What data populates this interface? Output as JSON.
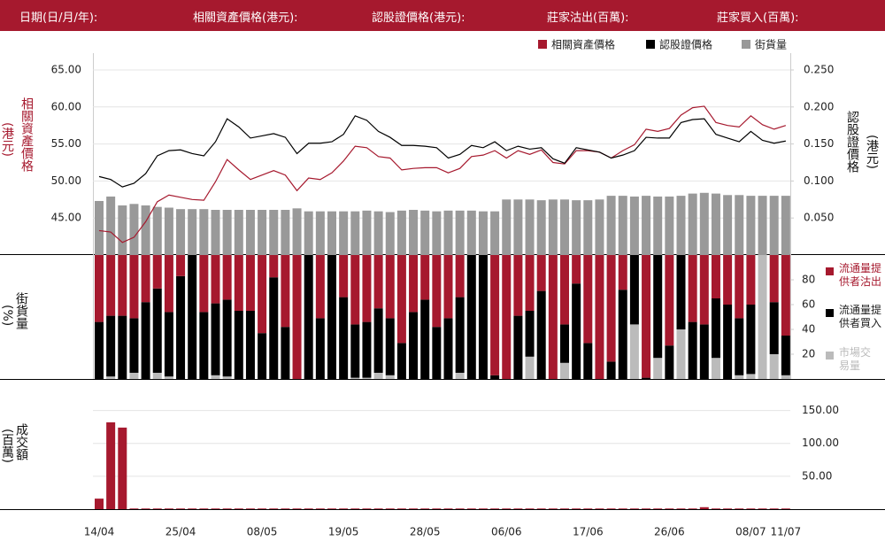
{
  "header": {
    "fields": [
      "日期(日/月/年):",
      "相關資產價格(港元):",
      "認股證價格(港元):",
      "莊家沽出(百萬):",
      "莊家買入(百萬):"
    ]
  },
  "chart_data": [
    {
      "type": "line",
      "ylabel": "相關資產價格",
      "ylabel_unit": "(港元)",
      "y2label": "認股證價格",
      "y2label_unit": "(港元)",
      "ylim": [
        40,
        65
      ],
      "yticks": [
        {
          "value": 45,
          "label": "45.00"
        },
        {
          "value": 50,
          "label": "50.00"
        },
        {
          "value": 55,
          "label": "55.00"
        },
        {
          "value": 60,
          "label": "60.00"
        },
        {
          "value": 65,
          "label": "65.00"
        }
      ],
      "y2lim": [
        0,
        0.25
      ],
      "y2ticks": [
        {
          "value": 0.05,
          "label": "0.050"
        },
        {
          "value": 0.1,
          "label": "0.100"
        },
        {
          "value": 0.15,
          "label": "0.150"
        },
        {
          "value": 0.2,
          "label": "0.200"
        },
        {
          "value": 0.25,
          "label": "0.250"
        }
      ],
      "grid": true,
      "series": [
        {
          "name": "相關資產價格",
          "color": "#a6192e",
          "values": [
            43.3,
            43.1,
            41.7,
            42.4,
            44.5,
            47.2,
            48.1,
            47.8,
            47.5,
            47.4,
            49.9,
            52.9,
            51.5,
            50.2,
            50.8,
            51.4,
            50.8,
            48.7,
            50.4,
            50.2,
            51.1,
            52.7,
            54.7,
            54.5,
            53.3,
            53.1,
            51.5,
            51.7,
            51.8,
            51.8,
            51.1,
            51.7,
            53.3,
            53.5,
            54.1,
            53.1,
            54.1,
            53.6,
            54.2,
            52.5,
            52.3,
            54.1,
            54.1,
            53.9,
            53.1,
            54.1,
            54.9,
            57.0,
            56.7,
            57.1,
            58.9,
            59.9,
            60.1,
            57.9,
            57.5,
            57.3,
            58.8,
            57.6,
            57.0,
            57.5
          ]
        },
        {
          "name": "認股證價格",
          "color": "#000000",
          "axis": "y2",
          "values": [
            0.106,
            0.102,
            0.092,
            0.097,
            0.11,
            0.134,
            0.141,
            0.142,
            0.137,
            0.134,
            0.153,
            0.184,
            0.173,
            0.158,
            0.161,
            0.164,
            0.159,
            0.137,
            0.151,
            0.151,
            0.153,
            0.163,
            0.188,
            0.182,
            0.167,
            0.159,
            0.148,
            0.148,
            0.147,
            0.145,
            0.131,
            0.136,
            0.148,
            0.145,
            0.153,
            0.141,
            0.147,
            0.143,
            0.145,
            0.13,
            0.124,
            0.145,
            0.142,
            0.139,
            0.131,
            0.135,
            0.141,
            0.159,
            0.158,
            0.158,
            0.179,
            0.183,
            0.184,
            0.163,
            0.158,
            0.153,
            0.167,
            0.155,
            0.151,
            0.154
          ]
        },
        {
          "name": "街貨量",
          "color": "#999999",
          "axis": "y2",
          "type": "bar",
          "values": [
            0.073,
            0.079,
            0.067,
            0.069,
            0.067,
            0.065,
            0.064,
            0.062,
            0.062,
            0.062,
            0.061,
            0.061,
            0.061,
            0.061,
            0.061,
            0.061,
            0.061,
            0.063,
            0.059,
            0.059,
            0.059,
            0.059,
            0.059,
            0.06,
            0.059,
            0.058,
            0.06,
            0.061,
            0.06,
            0.059,
            0.06,
            0.06,
            0.06,
            0.059,
            0.059,
            0.075,
            0.075,
            0.075,
            0.074,
            0.075,
            0.075,
            0.074,
            0.074,
            0.075,
            0.08,
            0.08,
            0.079,
            0.08,
            0.079,
            0.079,
            0.08,
            0.083,
            0.084,
            0.083,
            0.081,
            0.081,
            0.08,
            0.08,
            0.08,
            0.08
          ]
        }
      ]
    },
    {
      "type": "stacked_bar",
      "ylabel": "街貨量",
      "ylabel_unit": "(%)",
      "ylim": [
        0,
        100
      ],
      "yticks": [
        20,
        40,
        60,
        80
      ],
      "series": [
        {
          "name": "流通量提供者沽出",
          "color": "#a6192e",
          "values": [
            54,
            49,
            49,
            51,
            38,
            27,
            46,
            17,
            0,
            46,
            39,
            36,
            45,
            45,
            63,
            18,
            58,
            100,
            0,
            51,
            0,
            34,
            56,
            54,
            43,
            51,
            71,
            46,
            36,
            58,
            51,
            34,
            0,
            0,
            97,
            100,
            49,
            45,
            29,
            100,
            56,
            23,
            71,
            100,
            86,
            28,
            0,
            99,
            0,
            73,
            0,
            54,
            56,
            35,
            40,
            51,
            40,
            0,
            38,
            65
          ]
        },
        {
          "name": "流通量提供者買入",
          "color": "#000000",
          "values": [
            46,
            49,
            51,
            44,
            62,
            68,
            52,
            83,
            100,
            54,
            58,
            62,
            55,
            55,
            37,
            82,
            42,
            0,
            100,
            49,
            100,
            66,
            43,
            45,
            52,
            46,
            29,
            54,
            64,
            42,
            49,
            61,
            100,
            100,
            3,
            0,
            51,
            37,
            71,
            0,
            31,
            77,
            29,
            0,
            14,
            72,
            56,
            1,
            83,
            27,
            60,
            46,
            44,
            48,
            60,
            46,
            56,
            0,
            42,
            32
          ]
        },
        {
          "name": "市場交易量",
          "color": "#bbbbbb",
          "values": [
            0,
            2,
            0,
            5,
            0,
            5,
            2,
            0,
            0,
            0,
            3,
            2,
            0,
            0,
            0,
            0,
            0,
            0,
            0,
            0,
            0,
            0,
            1,
            1,
            5,
            3,
            0,
            0,
            0,
            0,
            0,
            5,
            0,
            0,
            0,
            0,
            0,
            18,
            0,
            0,
            13,
            0,
            0,
            0,
            0,
            0,
            44,
            0,
            17,
            0,
            40,
            0,
            0,
            17,
            0,
            3,
            4,
            100,
            20,
            3
          ]
        }
      ]
    },
    {
      "type": "bar",
      "ylabel": "成交額",
      "ylabel_unit": "(百萬)",
      "color": "#a6192e",
      "ylim": [
        0,
        175
      ],
      "yticks": [
        {
          "value": 50,
          "label": "50.00"
        },
        {
          "value": 100,
          "label": "100.00"
        },
        {
          "value": 150,
          "label": "150.00"
        }
      ],
      "grid": true,
      "categories": [
        "14/04",
        null,
        null,
        null,
        null,
        null,
        null,
        "25/04",
        null,
        null,
        null,
        null,
        null,
        null,
        "08/05",
        null,
        null,
        null,
        null,
        null,
        null,
        "19/05",
        null,
        null,
        null,
        null,
        null,
        null,
        "28/05",
        null,
        null,
        null,
        null,
        null,
        null,
        "06/06",
        null,
        null,
        null,
        null,
        null,
        null,
        "17/06",
        null,
        null,
        null,
        null,
        null,
        null,
        "26/06",
        null,
        null,
        null,
        null,
        null,
        null,
        "08/07",
        null,
        null,
        "11/07"
      ],
      "values": [
        16,
        132,
        124,
        1,
        1,
        1,
        1,
        1,
        1,
        1,
        1,
        1,
        1,
        1,
        1,
        1,
        1,
        1,
        1,
        1,
        1,
        1,
        1,
        1,
        1,
        1,
        1,
        1,
        1,
        1,
        1,
        1,
        1,
        1,
        1,
        1,
        1,
        1,
        1,
        1,
        1,
        1,
        1,
        1,
        1,
        1,
        1,
        1,
        1,
        1,
        1,
        1,
        3,
        1,
        1,
        1,
        1,
        1,
        1,
        1
      ]
    }
  ]
}
